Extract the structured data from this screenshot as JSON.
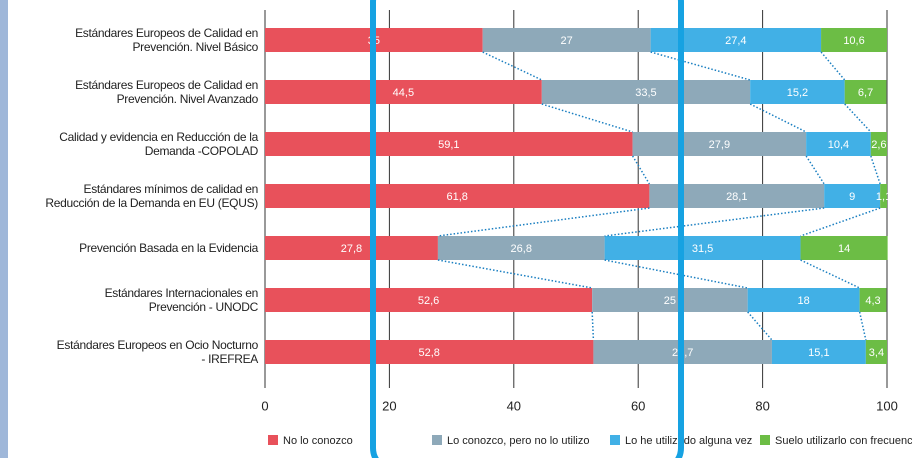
{
  "chart_data": {
    "type": "stacked-bar-horizontal",
    "categories": [
      "Estándares Europeos de Calidad en\nPrevención. Nivel Básico",
      "Estándares Europeos de Calidad en\nPrevención. Nivel Avanzado",
      "Calidad y evidencia en Reducción de la\nDemanda -COPOLAD",
      "Estándares mínimos de calidad en\nReducción de la Demanda en EU (EQUS)",
      "Prevención Basada en la Evidencia",
      "Estándares Internacionales en\nPrevención - UNODC",
      "Estándares Europeos en Ocio Nocturno\n- IREFREA"
    ],
    "series": [
      {
        "name": "No lo conozco",
        "color": "#e8515b",
        "values": [
          35,
          44.5,
          59.1,
          61.8,
          27.8,
          52.6,
          52.8
        ],
        "value_labels": [
          "35",
          "44,5",
          "59,1",
          "61,8",
          "27,8",
          "52,6",
          "52,8"
        ]
      },
      {
        "name": "Lo conozco, pero no lo utilizo",
        "color": "#8ea9b9",
        "values": [
          27,
          33.5,
          27.9,
          28.1,
          26.8,
          25,
          28.7
        ],
        "value_labels": [
          "27",
          "33,5",
          "27,9",
          "28,1",
          "26,8",
          "25",
          "28,7"
        ]
      },
      {
        "name": "Lo he utilizado alguna vez",
        "color": "#41b0e6",
        "values": [
          27.4,
          15.2,
          10.4,
          9,
          31.5,
          18,
          15.1
        ],
        "value_labels": [
          "27,4",
          "15,2",
          "10,4",
          "9",
          "31,5",
          "18",
          "15,1"
        ]
      },
      {
        "name": "Suelo utilizarlo con frecuencia",
        "color": "#6cbd45",
        "values": [
          10.6,
          6.7,
          2.6,
          1.1,
          14,
          4.3,
          3.4
        ],
        "value_labels": [
          "10,6",
          "6,7",
          "2,6",
          "1,1",
          "14",
          "4,3",
          "3,4"
        ]
      }
    ],
    "xlim": [
      0,
      100
    ],
    "xticks": [
      0,
      20,
      40,
      60,
      80,
      100
    ],
    "grid": true
  }
}
